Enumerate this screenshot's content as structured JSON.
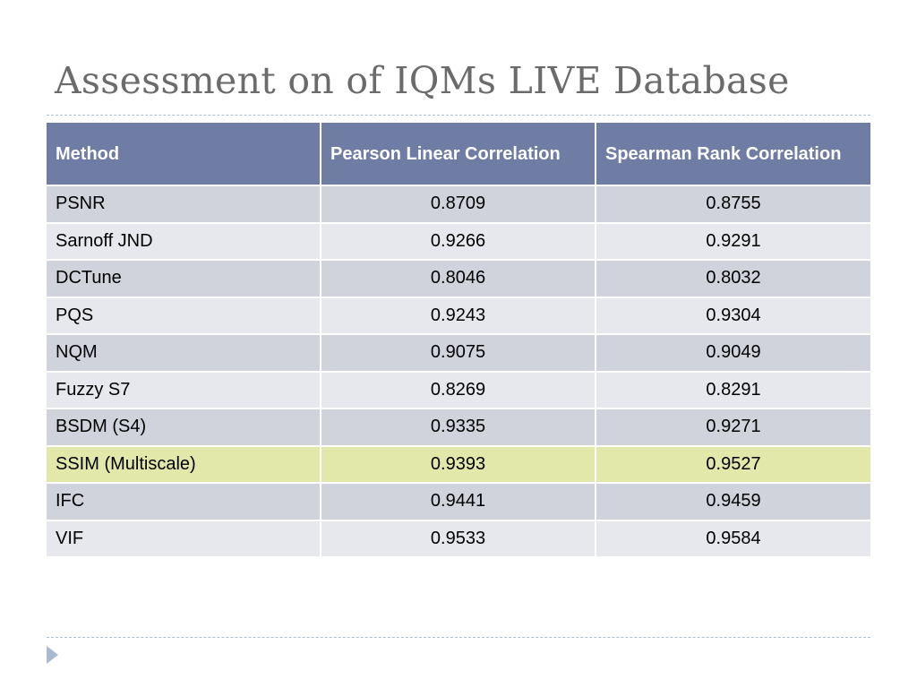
{
  "slide": {
    "title": "Assessment on of IQMs LIVE Database"
  },
  "table": {
    "headers": [
      "Method",
      "Pearson Linear Correlation",
      "Spearman Rank Correlation"
    ],
    "rows": [
      [
        "PSNR",
        "0.8709",
        "0.8755"
      ],
      [
        "Sarnoff JND",
        "0.9266",
        "0.9291"
      ],
      [
        "DCTune",
        "0.8046",
        "0.8032"
      ],
      [
        "PQS",
        "0.9243",
        "0.9304"
      ],
      [
        "NQM",
        "0.9075",
        "0.9049"
      ],
      [
        "Fuzzy S7",
        "0.8269",
        "0.8291"
      ],
      [
        "BSDM (S4)",
        "0.9335",
        "0.9271"
      ],
      [
        "SSIM (Multiscale)",
        "0.9393",
        "0.9527"
      ],
      [
        "IFC",
        "0.9441",
        "0.9459"
      ],
      [
        "VIF",
        "0.9533",
        "0.9584"
      ]
    ],
    "highlighted_method": "SSIM (Multiscale)"
  },
  "colors": {
    "header_bg": "#6f7ca3",
    "row_dark": "#d0d3dc",
    "row_light": "#e7e8ed",
    "row_highlight": "#e2e8aa",
    "title_text": "#6b6b6b",
    "rule": "#a9bed3"
  },
  "icons": {
    "bullet": "triangle-right-icon"
  }
}
